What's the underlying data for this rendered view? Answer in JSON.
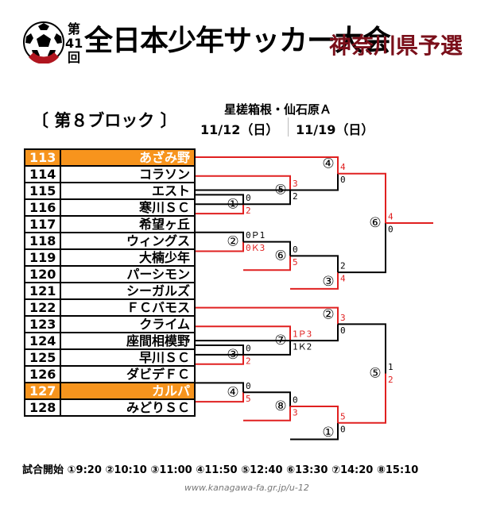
{
  "header": {
    "edition": [
      "第",
      "41",
      "回"
    ],
    "title": "全日本少年サッカー大会",
    "region": "神奈川県予選",
    "block": "〔 第８ブロック 〕",
    "venue": "星槎箱根・仙石原Ａ",
    "date1": "11/12（日）",
    "date2": "11/19（日）"
  },
  "teams": [
    {
      "num": "113",
      "name": "あざみ野",
      "highlight": true
    },
    {
      "num": "114",
      "name": "コラソン",
      "highlight": false
    },
    {
      "num": "115",
      "name": "エスト",
      "highlight": false
    },
    {
      "num": "116",
      "name": "寒川ＳＣ",
      "highlight": false
    },
    {
      "num": "117",
      "name": "希望ヶ丘",
      "highlight": false
    },
    {
      "num": "118",
      "name": "ウィングス",
      "highlight": false
    },
    {
      "num": "119",
      "name": "大楠少年",
      "highlight": false
    },
    {
      "num": "120",
      "name": "パーシモン",
      "highlight": false
    },
    {
      "num": "121",
      "name": "シーガルズ",
      "highlight": false
    },
    {
      "num": "122",
      "name": "ＦＣバモス",
      "highlight": false
    },
    {
      "num": "123",
      "name": "クライム",
      "highlight": false
    },
    {
      "num": "124",
      "name": "座間相模野",
      "highlight": false
    },
    {
      "num": "125",
      "name": "早川ＳＣ",
      "highlight": false
    },
    {
      "num": "126",
      "name": "ダビデＦＣ",
      "highlight": false
    },
    {
      "num": "127",
      "name": "カルパ",
      "highlight": true
    },
    {
      "num": "128",
      "name": "みどりＳＣ",
      "highlight": false
    }
  ],
  "matches": {
    "m1a": {
      "label": "①",
      "top": "0",
      "bottom": "2"
    },
    "m2a": {
      "label": "②",
      "top": "0Ｐ1",
      "bottom": "0Ｋ3"
    },
    "m3a": {
      "label": "③",
      "top": "0",
      "bottom": "2"
    },
    "m4a": {
      "label": "④",
      "top": "0",
      "bottom": "5"
    },
    "m5": {
      "label": "⑤",
      "top": "3",
      "bottom": "2"
    },
    "m6a": {
      "label": "⑥",
      "top": "0",
      "bottom": "5"
    },
    "m7": {
      "label": "⑦",
      "top": "1Ｐ3",
      "bottom": "1Ｋ2"
    },
    "m8": {
      "label": "⑧",
      "top": "0",
      "bottom": "3"
    },
    "m4b": {
      "label": "④",
      "top": "4",
      "bottom": "0"
    },
    "m3b": {
      "label": "③",
      "top": "2",
      "bottom": "4"
    },
    "m2b": {
      "label": "②",
      "top": "3",
      "bottom": "0"
    },
    "m1b": {
      "label": "①",
      "top": "5",
      "bottom": "0"
    },
    "m6b": {
      "label": "⑥",
      "top": "4",
      "bottom": "0"
    },
    "m5b": {
      "label": "⑤",
      "top": "1",
      "bottom": "2"
    }
  },
  "colors": {
    "winner": "#e02020",
    "loser": "#000000",
    "highlight": "#f7941d",
    "region": "#7a0f1a"
  },
  "footer": {
    "times": "試合開始 ①9:20 ②10:10 ③11:00 ④11:50 ⑤12:40 ⑥13:30 ⑦14:20 ⑧15:10",
    "url": "www.kanagawa-fa.gr.jp/u-12"
  }
}
